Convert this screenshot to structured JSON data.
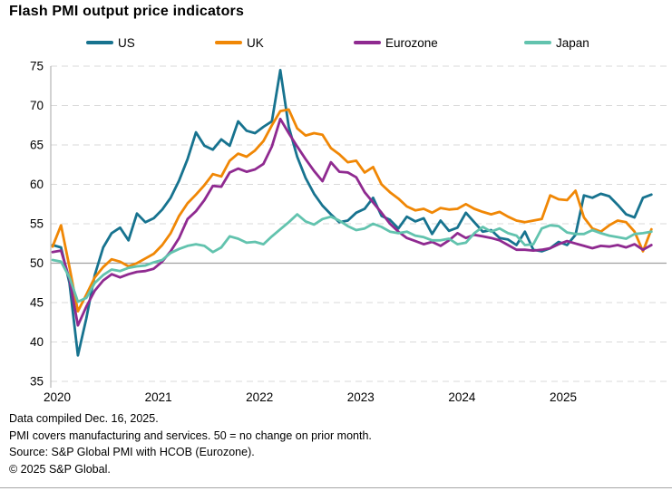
{
  "header": {
    "title": "Flash PMI output price indicators"
  },
  "chart_data": {
    "type": "line",
    "title": "Flash PMI output price indicators",
    "x_start": "2020-01",
    "frequency": "monthly",
    "xticks": [
      "2020",
      "2021",
      "2022",
      "2023",
      "2024",
      "2025"
    ],
    "yticks": [
      75,
      70,
      65,
      60,
      55,
      50,
      45,
      40,
      35
    ],
    "ylim": [
      35,
      75
    ],
    "reference_line": 50,
    "grid": "dashed-horizontal",
    "legend_position": "top",
    "series": [
      {
        "name": "US",
        "color": "#17738f",
        "values": [
          52.3,
          52.0,
          47.5,
          38.3,
          43.0,
          48.5,
          52.0,
          53.8,
          54.5,
          52.9,
          56.3,
          55.2,
          55.7,
          56.8,
          58.3,
          60.5,
          63.2,
          66.6,
          64.9,
          64.4,
          65.7,
          64.9,
          68.0,
          66.8,
          66.5,
          67.3,
          68.0,
          74.5,
          67.3,
          63.5,
          60.8,
          58.8,
          57.3,
          56.2,
          55.2,
          55.4,
          56.4,
          56.9,
          58.3,
          56.0,
          55.5,
          54.4,
          55.9,
          55.3,
          55.7,
          53.7,
          55.4,
          54.1,
          54.5,
          56.4,
          55.2,
          54.0,
          54.2,
          53.2,
          53.0,
          52.3,
          54.0,
          51.7,
          51.5,
          51.9,
          52.7,
          52.3,
          53.6,
          58.6,
          58.3,
          58.8,
          58.5,
          57.4,
          56.2,
          55.8,
          58.3,
          58.7
        ]
      },
      {
        "name": "UK",
        "color": "#f08705",
        "values": [
          52.1,
          54.8,
          49.5,
          43.9,
          46.0,
          48.2,
          49.5,
          50.5,
          50.2,
          49.6,
          50.0,
          50.6,
          51.2,
          52.3,
          53.8,
          56.0,
          57.6,
          58.7,
          59.9,
          61.3,
          61.0,
          63.0,
          63.9,
          63.5,
          64.3,
          65.5,
          67.5,
          69.3,
          69.5,
          67.1,
          66.2,
          66.5,
          66.3,
          64.6,
          63.8,
          62.8,
          63.0,
          61.5,
          62.2,
          60.0,
          59.0,
          58.2,
          57.2,
          56.7,
          56.9,
          56.4,
          57.0,
          56.8,
          56.9,
          57.5,
          56.9,
          56.5,
          56.2,
          56.5,
          55.9,
          55.4,
          55.2,
          55.4,
          55.6,
          58.6,
          58.1,
          58.0,
          59.2,
          55.8,
          54.4,
          54.0,
          54.8,
          55.4,
          55.2,
          54.0,
          51.5,
          54.3
        ]
      },
      {
        "name": "Eurozone",
        "color": "#8f2a90",
        "values": [
          51.4,
          51.6,
          48.0,
          42.1,
          44.5,
          46.5,
          47.8,
          48.6,
          48.2,
          48.6,
          48.9,
          49.0,
          49.3,
          50.2,
          51.5,
          53.2,
          55.6,
          56.6,
          58.0,
          59.8,
          59.7,
          61.5,
          62.0,
          61.6,
          61.9,
          62.6,
          64.8,
          68.3,
          66.5,
          64.8,
          63.2,
          61.7,
          60.4,
          62.8,
          61.6,
          61.5,
          60.9,
          59.0,
          57.7,
          56.4,
          55.0,
          54.0,
          53.2,
          52.8,
          52.4,
          52.7,
          52.2,
          52.9,
          53.8,
          53.2,
          53.6,
          53.4,
          53.2,
          52.9,
          52.3,
          51.7,
          51.7,
          51.6,
          51.7,
          51.9,
          52.4,
          52.8,
          52.5,
          52.2,
          51.9,
          52.2,
          52.1,
          52.3,
          52.0,
          52.4,
          51.7,
          52.3
        ]
      },
      {
        "name": "Japan",
        "color": "#62c3ae",
        "values": [
          50.4,
          50.2,
          48.2,
          45.1,
          45.6,
          47.5,
          48.5,
          49.2,
          49.0,
          49.4,
          49.6,
          49.7,
          50.1,
          50.4,
          51.3,
          51.8,
          52.2,
          52.4,
          52.2,
          51.4,
          52.0,
          53.4,
          53.1,
          52.6,
          52.7,
          52.4,
          53.4,
          54.3,
          55.2,
          56.2,
          55.3,
          54.9,
          55.6,
          55.9,
          55.4,
          54.7,
          54.2,
          54.4,
          55.0,
          54.6,
          54.0,
          53.8,
          54.0,
          53.5,
          53.3,
          52.9,
          52.9,
          53.1,
          52.4,
          52.6,
          53.8,
          54.6,
          54.0,
          54.4,
          53.8,
          53.5,
          52.3,
          52.4,
          54.4,
          54.8,
          54.7,
          53.9,
          53.7,
          53.7,
          54.2,
          53.8,
          53.5,
          53.3,
          53.1,
          53.7,
          53.8,
          54.0
        ]
      }
    ]
  },
  "colors": {
    "reference_line": "#a0a0a0",
    "gridline": "#d9d9d9",
    "axis": "#b3b3b3",
    "text": "#000000"
  },
  "footer": {
    "notes": [
      "Data compiled Dec. 16, 2025.",
      "PMI covers manufacturing and services. 50 = no change on prior month.",
      "Source: S&P Global PMI with HCOB (Eurozone).",
      "© 2025 S&P Global."
    ]
  }
}
